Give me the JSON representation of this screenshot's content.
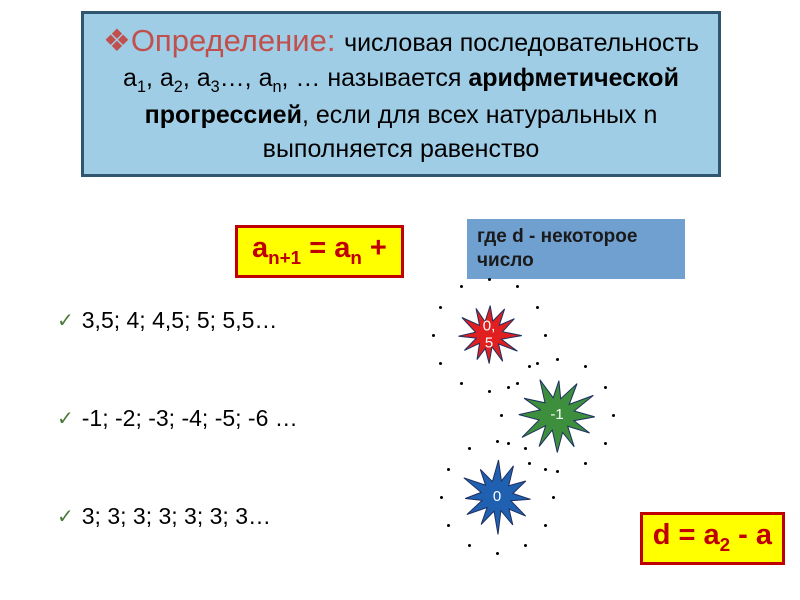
{
  "colors": {
    "slide_bg": "#ffffff",
    "defbox_bg": "#a0cde6",
    "defbox_border": "#2f5571",
    "def_title_color": "#c0504d",
    "formula_bg": "#ffff00",
    "formula_border": "#c00000",
    "formula_text_color": "#c00000",
    "where_bg": "#70a0d0",
    "where_text_color": "#1a1a1a",
    "bottom_formula_bg": "#ffff00",
    "bottom_formula_border": "#c00000",
    "bottom_formula_text": "#c00000",
    "check_color": "#4a7a3a",
    "star1_fill": "#e02020",
    "star2_fill": "#3d8f3d",
    "star3_fill": "#2060b0",
    "star_stroke": "#1e3060",
    "dot_color": "#000000"
  },
  "definition": {
    "title": "Определение:",
    "body_part1": " числовая последовательность а",
    "sub1": "1",
    "comma1": ", а",
    "sub2": "2",
    "comma2": ", а",
    "sub3": "3",
    "comma3": "…, а",
    "sub4": "n",
    "comma4": ",  … называется ",
    "bold": "арифметической прогрессией",
    "tail": ", если для всех натуральных   n выполняется равенство",
    "title_fontsize": 31,
    "body_fontsize": 25
  },
  "formula": {
    "part1": "a",
    "sub1": "n+1",
    "mid": " = а",
    "sub2": "n",
    "tail": " + "
  },
  "where": {
    "text": "где d -  некоторое число"
  },
  "sequences": {
    "s1": "3,5;  4;  4,5; 5; 5,5…",
    "s2": "-1; -2; -3; -4; -5; -6 …",
    "s3": "3; 3; 3; 3; 3; 3; 3…"
  },
  "stars": {
    "b1_label_l1": "0,",
    "b1_label_l2": "5",
    "b2_label": "-1",
    "b3_label": "0",
    "b1_size": 60,
    "b2_size": 76,
    "b3_size": 70,
    "dot_ring_radius": 56,
    "dot_count": 12
  },
  "bottom_formula": {
    "part1": "d = a",
    "sub1": "2",
    "mid": " - a"
  },
  "check_glyph": "✓"
}
